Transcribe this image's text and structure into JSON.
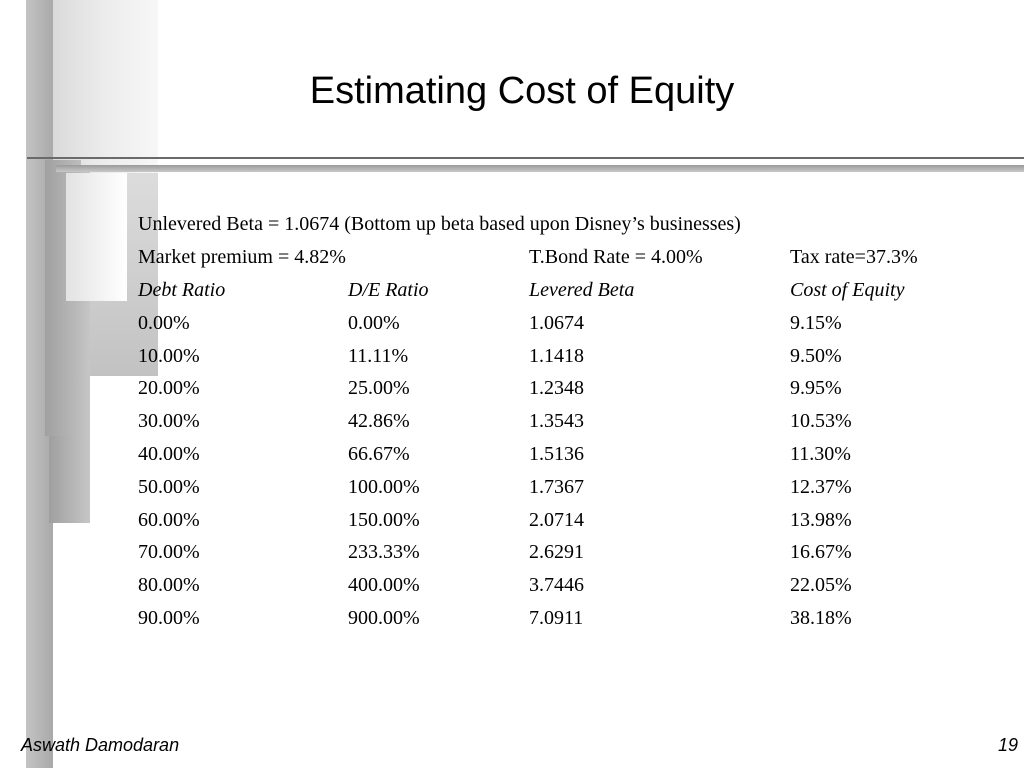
{
  "slide": {
    "title": "Estimating Cost of Equity",
    "unlevered_beta_line": "Unlevered Beta = 1.0674 (Bottom up beta based upon Disney’s businesses)",
    "market_premium": "Market premium = 4.82%",
    "tbond_rate": "T.Bond Rate = 4.00%",
    "tax_rate": "Tax rate=37.3%"
  },
  "table": {
    "headers": [
      "Debt Ratio",
      "D/E Ratio",
      "Levered Beta",
      "Cost of Equity"
    ],
    "rows": [
      [
        "0.00%",
        "0.00%",
        "1.0674",
        "9.15%"
      ],
      [
        "10.00%",
        "11.11%",
        "1.1418",
        "9.50%"
      ],
      [
        "20.00%",
        "25.00%",
        "1.2348",
        "9.95%"
      ],
      [
        "30.00%",
        "42.86%",
        "1.3543",
        "10.53%"
      ],
      [
        "40.00%",
        "66.67%",
        "1.5136",
        "11.30%"
      ],
      [
        "50.00%",
        "100.00%",
        "1.7367",
        "12.37%"
      ],
      [
        "60.00%",
        "150.00%",
        "2.0714",
        "13.98%"
      ],
      [
        "70.00%",
        "233.33%",
        "2.6291",
        "16.67%"
      ],
      [
        "80.00%",
        "400.00%",
        "3.7446",
        "22.05%"
      ],
      [
        "90.00%",
        "900.00%",
        "7.0911",
        "38.18%"
      ]
    ]
  },
  "footer": {
    "author": "Aswath Damodaran",
    "page_number": "19"
  }
}
